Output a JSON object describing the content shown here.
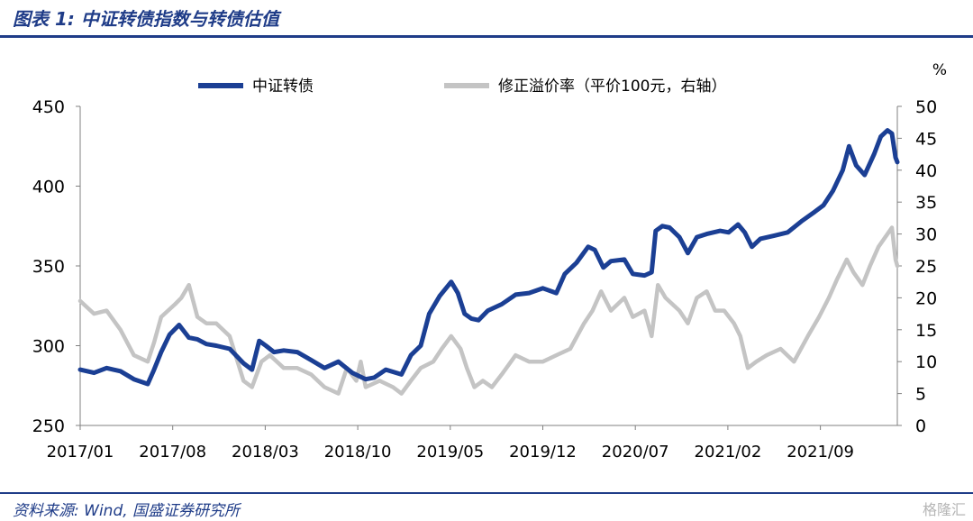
{
  "header": {
    "title": "图表 1:  中证转债指数与转债估值"
  },
  "footer": {
    "source": "资料来源: Wind, 国盛证券研究所",
    "watermark": "格隆汇"
  },
  "colors": {
    "accent": "#1f3c88",
    "series_left": "#1b3f94",
    "series_right": "#c4c4c4"
  },
  "chart_data": {
    "type": "line",
    "y_left": {
      "lim": [
        250,
        450
      ],
      "ticks": [
        250,
        300,
        350,
        400,
        450
      ]
    },
    "y_right": {
      "unit": "%",
      "lim": [
        0,
        50
      ],
      "ticks": [
        0,
        5,
        10,
        15,
        20,
        25,
        30,
        35,
        40,
        45,
        50
      ]
    },
    "x_ticks": [
      "2017/01",
      "2017/08",
      "2018/03",
      "2018/10",
      "2019/05",
      "2019/12",
      "2020/07",
      "2021/02",
      "2021/09"
    ],
    "x_range": [
      "2017-01",
      "2022-01"
    ],
    "legend": {
      "placement": "top"
    },
    "series": [
      {
        "name": "中证转债",
        "axis": "left",
        "points": [
          [
            "2017-01-01",
            285
          ],
          [
            "2017-02-01",
            283
          ],
          [
            "2017-03-01",
            286
          ],
          [
            "2017-04-01",
            284
          ],
          [
            "2017-05-01",
            279
          ],
          [
            "2017-06-01",
            276
          ],
          [
            "2017-06-15",
            285
          ],
          [
            "2017-07-01",
            296
          ],
          [
            "2017-07-20",
            307
          ],
          [
            "2017-08-10",
            313
          ],
          [
            "2017-09-01",
            305
          ],
          [
            "2017-09-20",
            304
          ],
          [
            "2017-10-10",
            301
          ],
          [
            "2017-11-01",
            300
          ],
          [
            "2017-12-01",
            298
          ],
          [
            "2018-01-01",
            289
          ],
          [
            "2018-01-20",
            285
          ],
          [
            "2018-02-05",
            303
          ],
          [
            "2018-02-20",
            300
          ],
          [
            "2018-03-10",
            296
          ],
          [
            "2018-04-01",
            297
          ],
          [
            "2018-05-01",
            296
          ],
          [
            "2018-06-01",
            291
          ],
          [
            "2018-07-01",
            286
          ],
          [
            "2018-08-01",
            290
          ],
          [
            "2018-09-01",
            283
          ],
          [
            "2018-10-01",
            279
          ],
          [
            "2018-10-20",
            280
          ],
          [
            "2018-11-15",
            285
          ],
          [
            "2018-12-20",
            282
          ],
          [
            "2019-01-10",
            294
          ],
          [
            "2019-02-01",
            300
          ],
          [
            "2019-02-20",
            320
          ],
          [
            "2019-03-15",
            331
          ],
          [
            "2019-04-10",
            340
          ],
          [
            "2019-04-25",
            333
          ],
          [
            "2019-05-10",
            320
          ],
          [
            "2019-05-25",
            317
          ],
          [
            "2019-06-10",
            316
          ],
          [
            "2019-07-01",
            322
          ],
          [
            "2019-08-01",
            326
          ],
          [
            "2019-09-01",
            332
          ],
          [
            "2019-10-01",
            333
          ],
          [
            "2019-11-01",
            336
          ],
          [
            "2019-12-01",
            333
          ],
          [
            "2019-12-20",
            345
          ],
          [
            "2020-01-15",
            352
          ],
          [
            "2020-02-10",
            362
          ],
          [
            "2020-02-25",
            360
          ],
          [
            "2020-03-15",
            349
          ],
          [
            "2020-04-01",
            353
          ],
          [
            "2020-05-01",
            354
          ],
          [
            "2020-05-20",
            345
          ],
          [
            "2020-06-15",
            344
          ],
          [
            "2020-07-01",
            346
          ],
          [
            "2020-07-10",
            372
          ],
          [
            "2020-07-25",
            375
          ],
          [
            "2020-08-10",
            374
          ],
          [
            "2020-09-01",
            368
          ],
          [
            "2020-09-20",
            358
          ],
          [
            "2020-10-10",
            368
          ],
          [
            "2020-11-01",
            370
          ],
          [
            "2020-12-01",
            372
          ],
          [
            "2020-12-20",
            371
          ],
          [
            "2021-01-10",
            376
          ],
          [
            "2021-01-25",
            371
          ],
          [
            "2021-02-10",
            362
          ],
          [
            "2021-03-01",
            367
          ],
          [
            "2021-04-01",
            369
          ],
          [
            "2021-05-01",
            371
          ],
          [
            "2021-06-01",
            378
          ],
          [
            "2021-07-01",
            384
          ],
          [
            "2021-07-20",
            388
          ],
          [
            "2021-08-10",
            397
          ],
          [
            "2021-09-01",
            410
          ],
          [
            "2021-09-15",
            425
          ],
          [
            "2021-10-01",
            413
          ],
          [
            "2021-10-20",
            407
          ],
          [
            "2021-11-10",
            420
          ],
          [
            "2021-11-25",
            431
          ],
          [
            "2021-12-10",
            435
          ],
          [
            "2021-12-20",
            433
          ],
          [
            "2021-12-28",
            418
          ],
          [
            "2022-01-01",
            415
          ]
        ]
      },
      {
        "name": "修正溢价率（平价100元，右轴）",
        "axis": "right",
        "points": [
          [
            "2017-01-01",
            19.5
          ],
          [
            "2017-02-01",
            17.5
          ],
          [
            "2017-03-01",
            18
          ],
          [
            "2017-04-01",
            15
          ],
          [
            "2017-05-01",
            11
          ],
          [
            "2017-06-01",
            10
          ],
          [
            "2017-06-15",
            13
          ],
          [
            "2017-07-01",
            17
          ],
          [
            "2017-08-01",
            19
          ],
          [
            "2017-08-15",
            20
          ],
          [
            "2017-09-01",
            22
          ],
          [
            "2017-09-20",
            17
          ],
          [
            "2017-10-10",
            16
          ],
          [
            "2017-11-01",
            16
          ],
          [
            "2017-12-01",
            14
          ],
          [
            "2018-01-01",
            7
          ],
          [
            "2018-01-20",
            6
          ],
          [
            "2018-02-10",
            10
          ],
          [
            "2018-03-01",
            11
          ],
          [
            "2018-04-01",
            9
          ],
          [
            "2018-05-01",
            9
          ],
          [
            "2018-06-01",
            8
          ],
          [
            "2018-07-01",
            6
          ],
          [
            "2018-08-01",
            5
          ],
          [
            "2018-08-20",
            9
          ],
          [
            "2018-09-10",
            7
          ],
          [
            "2018-09-20",
            10
          ],
          [
            "2018-10-01",
            6
          ],
          [
            "2018-11-01",
            7
          ],
          [
            "2018-12-01",
            6
          ],
          [
            "2018-12-20",
            5
          ],
          [
            "2019-01-10",
            7
          ],
          [
            "2019-02-01",
            9
          ],
          [
            "2019-03-01",
            10
          ],
          [
            "2019-03-20",
            12
          ],
          [
            "2019-04-10",
            14
          ],
          [
            "2019-05-01",
            12
          ],
          [
            "2019-05-15",
            9
          ],
          [
            "2019-06-01",
            6
          ],
          [
            "2019-06-20",
            7
          ],
          [
            "2019-07-10",
            6
          ],
          [
            "2019-08-01",
            8
          ],
          [
            "2019-09-01",
            11
          ],
          [
            "2019-10-01",
            10
          ],
          [
            "2019-11-01",
            10
          ],
          [
            "2019-12-01",
            11
          ],
          [
            "2020-01-01",
            12
          ],
          [
            "2020-02-01",
            16
          ],
          [
            "2020-02-20",
            18
          ],
          [
            "2020-03-10",
            21
          ],
          [
            "2020-04-01",
            18
          ],
          [
            "2020-05-01",
            20
          ],
          [
            "2020-05-20",
            17
          ],
          [
            "2020-06-15",
            18
          ],
          [
            "2020-07-01",
            14
          ],
          [
            "2020-07-15",
            22
          ],
          [
            "2020-08-01",
            20
          ],
          [
            "2020-09-01",
            18
          ],
          [
            "2020-09-20",
            16
          ],
          [
            "2020-10-10",
            20
          ],
          [
            "2020-11-01",
            21
          ],
          [
            "2020-11-20",
            18
          ],
          [
            "2020-12-10",
            18
          ],
          [
            "2021-01-01",
            16
          ],
          [
            "2021-01-15",
            14
          ],
          [
            "2021-02-01",
            9
          ],
          [
            "2021-02-20",
            10
          ],
          [
            "2021-03-15",
            11
          ],
          [
            "2021-04-15",
            12
          ],
          [
            "2021-05-15",
            10
          ],
          [
            "2021-06-15",
            14
          ],
          [
            "2021-07-10",
            17
          ],
          [
            "2021-08-01",
            20
          ],
          [
            "2021-08-20",
            23
          ],
          [
            "2021-09-10",
            26
          ],
          [
            "2021-09-25",
            24
          ],
          [
            "2021-10-15",
            22
          ],
          [
            "2021-11-01",
            25
          ],
          [
            "2021-11-20",
            28
          ],
          [
            "2021-12-10",
            30
          ],
          [
            "2021-12-20",
            31
          ],
          [
            "2021-12-28",
            26
          ],
          [
            "2022-01-01",
            25
          ]
        ]
      }
    ]
  }
}
